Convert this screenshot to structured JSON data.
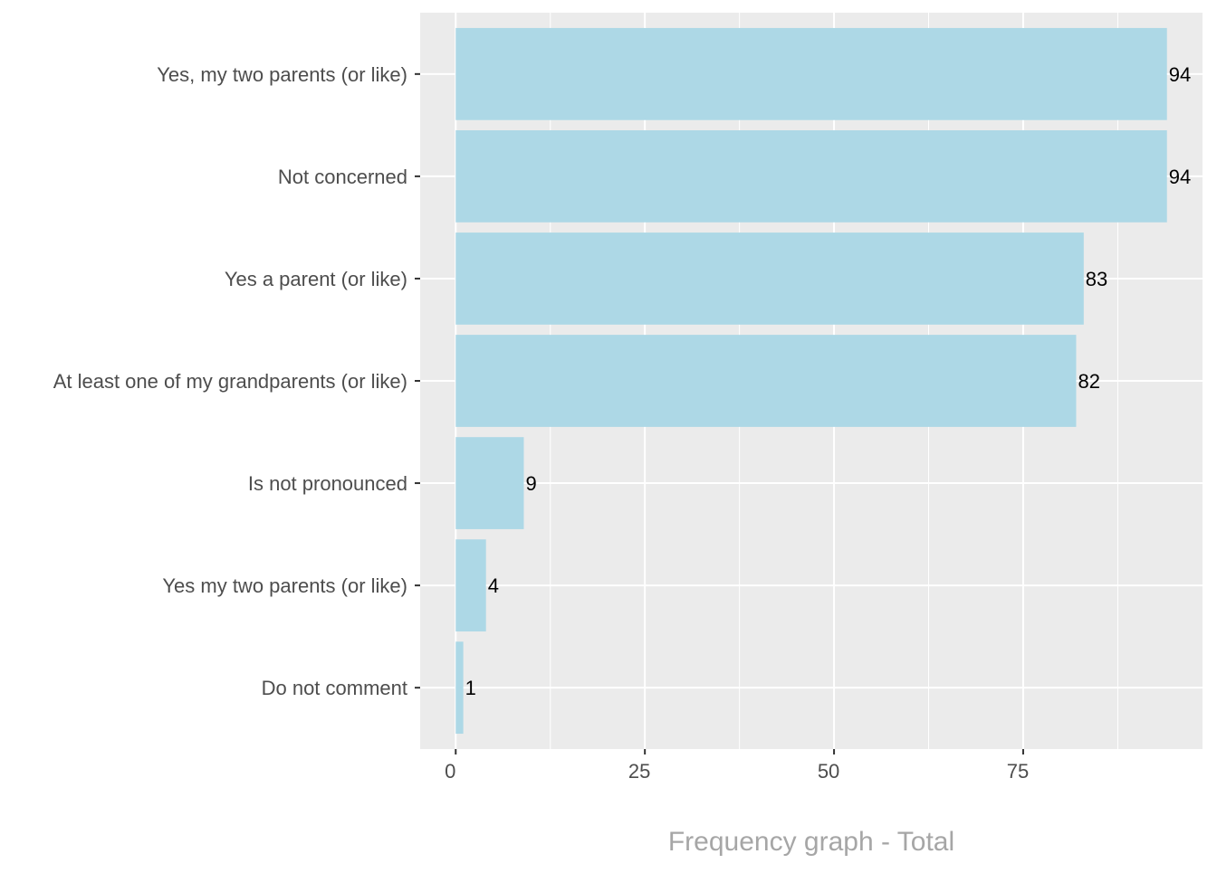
{
  "chart_data": {
    "type": "bar",
    "orientation": "horizontal",
    "categories": [
      "Yes, my two parents (or like)",
      "Not concerned",
      "Yes a parent (or like)",
      "At least one of my grandparents (or like)",
      "Is not pronounced",
      "Yes my two parents (or like)",
      "Do not comment"
    ],
    "values": [
      94,
      94,
      83,
      82,
      9,
      4,
      1
    ],
    "data_labels": [
      "94",
      "94",
      "83",
      "82",
      "9",
      "4",
      "1"
    ],
    "title": "",
    "xlabel": "Frequency graph - Total",
    "ylabel": "",
    "xlim": [
      -4.7,
      98.7
    ],
    "x_ticks": [
      0,
      25,
      50,
      75
    ],
    "x_tick_labels": [
      "0",
      "25",
      "50",
      "75"
    ],
    "grid": true,
    "legend": "none",
    "colors": {
      "bar": "#add8e6",
      "panel": "#ebebeb",
      "grid": "#ffffff",
      "axis_title": "#a6a6a6",
      "tick_text": "#4d4d4d"
    }
  }
}
